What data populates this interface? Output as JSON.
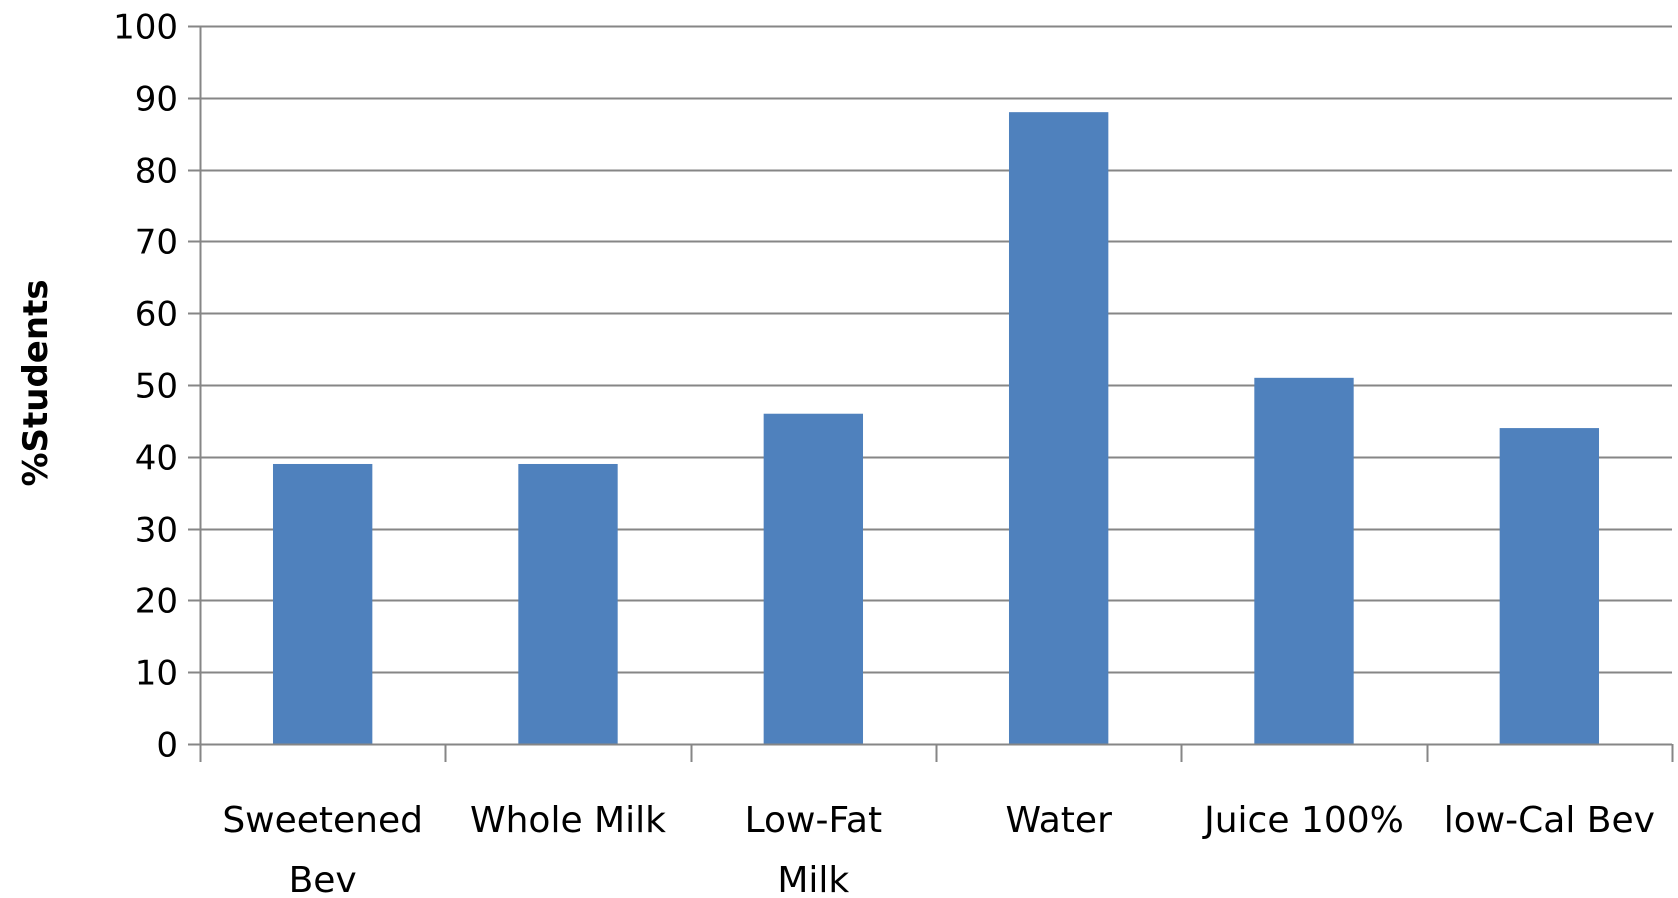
{
  "chart_data": {
    "type": "bar",
    "categories": [
      [
        "Sweetened",
        "Bev"
      ],
      [
        "Whole Milk"
      ],
      [
        "Low-Fat",
        "Milk"
      ],
      [
        "Water"
      ],
      [
        "Juice 100%"
      ],
      [
        "low-Cal Bev"
      ]
    ],
    "values": [
      39,
      39,
      46,
      88,
      51,
      44
    ],
    "ylabel": "%Students",
    "xlabel": "",
    "ylim": [
      0,
      100
    ],
    "yticks": [
      0,
      10,
      20,
      30,
      40,
      50,
      60,
      70,
      80,
      90,
      100
    ],
    "grid": true,
    "legend": "none",
    "colors": {
      "bar": "#4f81bd",
      "grid": "#868686",
      "axis": "#868686",
      "text": "#000000"
    }
  }
}
